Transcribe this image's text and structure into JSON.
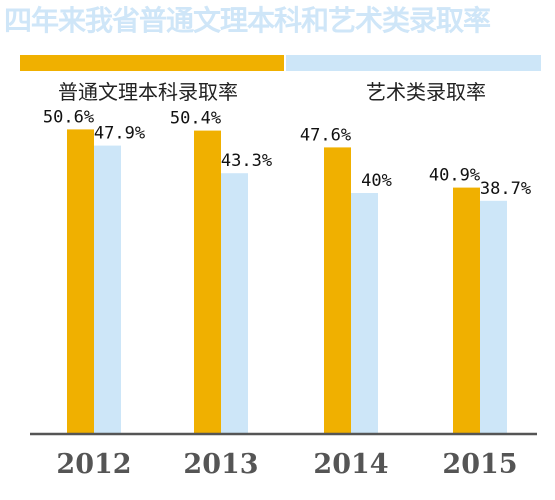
{
  "title": "四年来我省普通文理本科和艺术类录取率",
  "legend": [
    {
      "label": "普通文理本科录取率",
      "color": "#f0b000"
    },
    {
      "label": "艺术类录取率",
      "color": "#cde6f8"
    }
  ],
  "chart_data": {
    "type": "bar",
    "title": "四年来我省普通文理本科和艺术类录取率",
    "categories": [
      "2012",
      "2013",
      "2014",
      "2015"
    ],
    "series": [
      {
        "name": "普通文理本科录取率",
        "values": [
          50.6,
          50.4,
          47.6,
          40.9
        ],
        "labels": [
          "50.6%",
          "50.4%",
          "47.6%",
          "40.9%"
        ],
        "color": "#f0b000"
      },
      {
        "name": "艺术类录取率",
        "values": [
          47.9,
          43.3,
          40,
          38.7
        ],
        "labels": [
          "47.9%",
          "43.3%",
          "40%",
          "38.7%"
        ],
        "color": "#cde6f8"
      }
    ],
    "ylim": [
      0,
      60
    ],
    "grid": false,
    "legend_position": "top"
  }
}
